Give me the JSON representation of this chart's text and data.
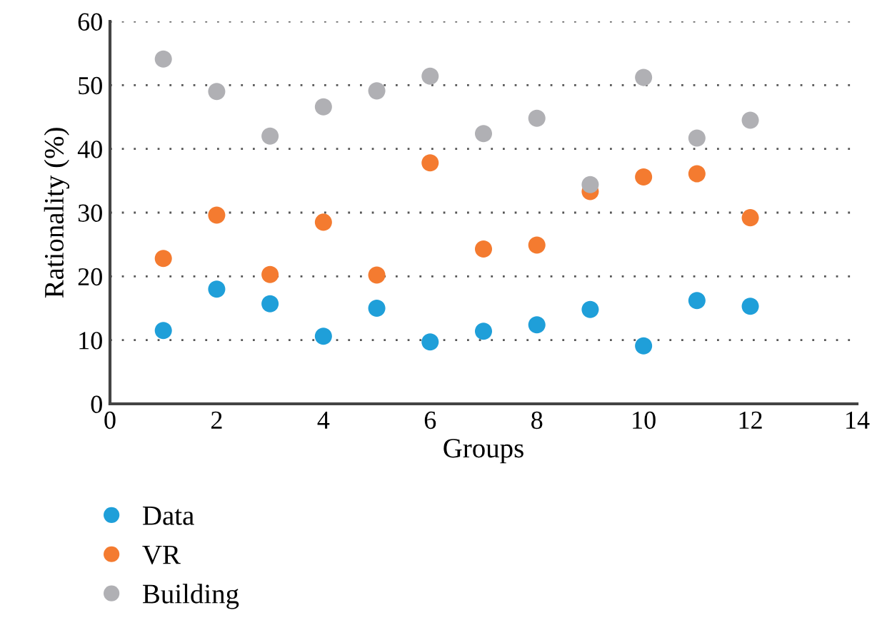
{
  "chart_data": {
    "type": "scatter",
    "xlabel": "Groups",
    "ylabel": "Rationality (%)",
    "x": [
      1,
      2,
      3,
      4,
      5,
      6,
      7,
      8,
      9,
      10,
      11,
      12
    ],
    "series": [
      {
        "name": "Data",
        "color": "#1f9fd9",
        "values": [
          11.5,
          18,
          15.7,
          10.6,
          15,
          9.7,
          11.4,
          12.4,
          14.8,
          9.1,
          16.2,
          15.3
        ]
      },
      {
        "name": "VR",
        "color": "#f47b30",
        "values": [
          22.8,
          29.6,
          20.3,
          28.5,
          20.2,
          37.8,
          24.3,
          24.9,
          33.3,
          35.6,
          36.1,
          29.2
        ]
      },
      {
        "name": "Building",
        "color": "#b0b0b4",
        "values": [
          54.1,
          49,
          42,
          46.6,
          49.1,
          51.4,
          42.4,
          44.8,
          34.4,
          51.2,
          41.7,
          44.5
        ]
      }
    ],
    "xlim": [
      0,
      14
    ],
    "xticks": [
      0,
      2,
      4,
      6,
      8,
      10,
      12,
      14
    ],
    "ylim": [
      0,
      60
    ],
    "yticks": [
      0,
      10,
      20,
      30,
      40,
      50,
      60
    ],
    "grid": "y",
    "legend": "bottom left",
    "marker": "circle"
  }
}
